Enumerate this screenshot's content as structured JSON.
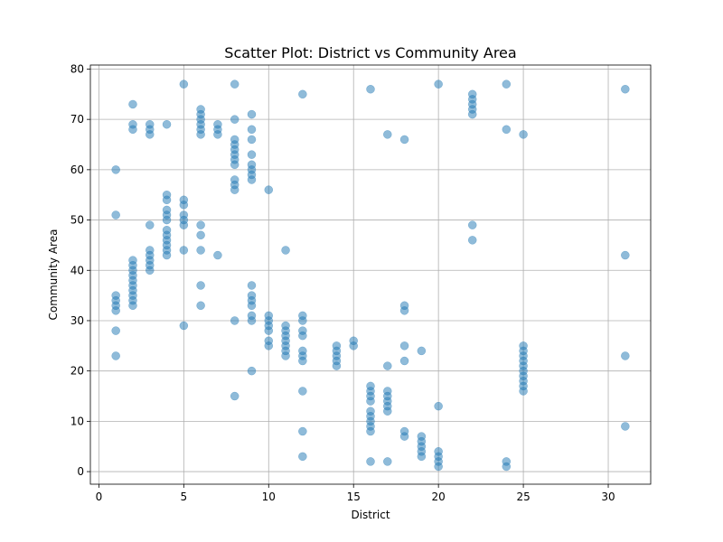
{
  "chart_data": {
    "type": "scatter",
    "title": "Scatter Plot: District vs Community Area",
    "xlabel": "District",
    "ylabel": "Community Area",
    "xlim": [
      -0.5,
      32.5
    ],
    "ylim": [
      -2.5,
      80.8
    ],
    "xticks": [
      0,
      5,
      10,
      15,
      20,
      25,
      30
    ],
    "yticks": [
      0,
      10,
      20,
      30,
      40,
      50,
      60,
      70,
      80
    ],
    "grid": true,
    "marker_color": "#1f77b4",
    "marker_alpha": 0.5,
    "points": [
      [
        1,
        23
      ],
      [
        1,
        28
      ],
      [
        1,
        32
      ],
      [
        1,
        33
      ],
      [
        1,
        34
      ],
      [
        1,
        35
      ],
      [
        1,
        51
      ],
      [
        1,
        60
      ],
      [
        2,
        33
      ],
      [
        2,
        34
      ],
      [
        2,
        35
      ],
      [
        2,
        36
      ],
      [
        2,
        37
      ],
      [
        2,
        38
      ],
      [
        2,
        39
      ],
      [
        2,
        40
      ],
      [
        2,
        41
      ],
      [
        2,
        42
      ],
      [
        2,
        68
      ],
      [
        2,
        69
      ],
      [
        2,
        73
      ],
      [
        3,
        40
      ],
      [
        3,
        41
      ],
      [
        3,
        42
      ],
      [
        3,
        43
      ],
      [
        3,
        44
      ],
      [
        3,
        49
      ],
      [
        3,
        67
      ],
      [
        3,
        68
      ],
      [
        3,
        69
      ],
      [
        4,
        43
      ],
      [
        4,
        44
      ],
      [
        4,
        45
      ],
      [
        4,
        46
      ],
      [
        4,
        47
      ],
      [
        4,
        48
      ],
      [
        4,
        50
      ],
      [
        4,
        51
      ],
      [
        4,
        52
      ],
      [
        4,
        54
      ],
      [
        4,
        55
      ],
      [
        4,
        69
      ],
      [
        5,
        29
      ],
      [
        5,
        44
      ],
      [
        5,
        49
      ],
      [
        5,
        50
      ],
      [
        5,
        51
      ],
      [
        5,
        53
      ],
      [
        5,
        54
      ],
      [
        5,
        77
      ],
      [
        6,
        33
      ],
      [
        6,
        37
      ],
      [
        6,
        44
      ],
      [
        6,
        47
      ],
      [
        6,
        49
      ],
      [
        6,
        67
      ],
      [
        6,
        68
      ],
      [
        6,
        69
      ],
      [
        6,
        70
      ],
      [
        6,
        71
      ],
      [
        6,
        72
      ],
      [
        7,
        43
      ],
      [
        7,
        67
      ],
      [
        7,
        68
      ],
      [
        7,
        69
      ],
      [
        8,
        15
      ],
      [
        8,
        30
      ],
      [
        8,
        56
      ],
      [
        8,
        57
      ],
      [
        8,
        58
      ],
      [
        8,
        61
      ],
      [
        8,
        62
      ],
      [
        8,
        63
      ],
      [
        8,
        64
      ],
      [
        8,
        65
      ],
      [
        8,
        66
      ],
      [
        8,
        70
      ],
      [
        8,
        77
      ],
      [
        9,
        20
      ],
      [
        9,
        30
      ],
      [
        9,
        31
      ],
      [
        9,
        33
      ],
      [
        9,
        34
      ],
      [
        9,
        35
      ],
      [
        9,
        37
      ],
      [
        9,
        58
      ],
      [
        9,
        59
      ],
      [
        9,
        60
      ],
      [
        9,
        61
      ],
      [
        9,
        63
      ],
      [
        9,
        66
      ],
      [
        9,
        68
      ],
      [
        9,
        71
      ],
      [
        10,
        25
      ],
      [
        10,
        26
      ],
      [
        10,
        28
      ],
      [
        10,
        29
      ],
      [
        10,
        30
      ],
      [
        10,
        31
      ],
      [
        10,
        56
      ],
      [
        11,
        23
      ],
      [
        11,
        24
      ],
      [
        11,
        25
      ],
      [
        11,
        26
      ],
      [
        11,
        27
      ],
      [
        11,
        28
      ],
      [
        11,
        29
      ],
      [
        11,
        44
      ],
      [
        12,
        3
      ],
      [
        12,
        8
      ],
      [
        12,
        16
      ],
      [
        12,
        22
      ],
      [
        12,
        23
      ],
      [
        12,
        24
      ],
      [
        12,
        27
      ],
      [
        12,
        28
      ],
      [
        12,
        30
      ],
      [
        12,
        31
      ],
      [
        12,
        75
      ],
      [
        14,
        21
      ],
      [
        14,
        22
      ],
      [
        14,
        23
      ],
      [
        14,
        24
      ],
      [
        14,
        25
      ],
      [
        15,
        25
      ],
      [
        15,
        26
      ],
      [
        16,
        2
      ],
      [
        16,
        8
      ],
      [
        16,
        9
      ],
      [
        16,
        10
      ],
      [
        16,
        11
      ],
      [
        16,
        12
      ],
      [
        16,
        14
      ],
      [
        16,
        15
      ],
      [
        16,
        16
      ],
      [
        16,
        17
      ],
      [
        16,
        76
      ],
      [
        17,
        2
      ],
      [
        17,
        12
      ],
      [
        17,
        13
      ],
      [
        17,
        14
      ],
      [
        17,
        15
      ],
      [
        17,
        16
      ],
      [
        17,
        21
      ],
      [
        17,
        67
      ],
      [
        18,
        7
      ],
      [
        18,
        8
      ],
      [
        18,
        22
      ],
      [
        18,
        25
      ],
      [
        18,
        32
      ],
      [
        18,
        33
      ],
      [
        18,
        66
      ],
      [
        19,
        3
      ],
      [
        19,
        4
      ],
      [
        19,
        5
      ],
      [
        19,
        6
      ],
      [
        19,
        7
      ],
      [
        19,
        24
      ],
      [
        20,
        1
      ],
      [
        20,
        2
      ],
      [
        20,
        3
      ],
      [
        20,
        4
      ],
      [
        20,
        13
      ],
      [
        20,
        77
      ],
      [
        22,
        46
      ],
      [
        22,
        49
      ],
      [
        22,
        71
      ],
      [
        22,
        72
      ],
      [
        22,
        73
      ],
      [
        22,
        74
      ],
      [
        22,
        75
      ],
      [
        24,
        1
      ],
      [
        24,
        2
      ],
      [
        24,
        68
      ],
      [
        24,
        77
      ],
      [
        25,
        16
      ],
      [
        25,
        17
      ],
      [
        25,
        18
      ],
      [
        25,
        19
      ],
      [
        25,
        20
      ],
      [
        25,
        21
      ],
      [
        25,
        22
      ],
      [
        25,
        23
      ],
      [
        25,
        24
      ],
      [
        25,
        25
      ],
      [
        25,
        67
      ],
      [
        31,
        9
      ],
      [
        31,
        23
      ],
      [
        31,
        43
      ],
      [
        31,
        76
      ]
    ]
  }
}
